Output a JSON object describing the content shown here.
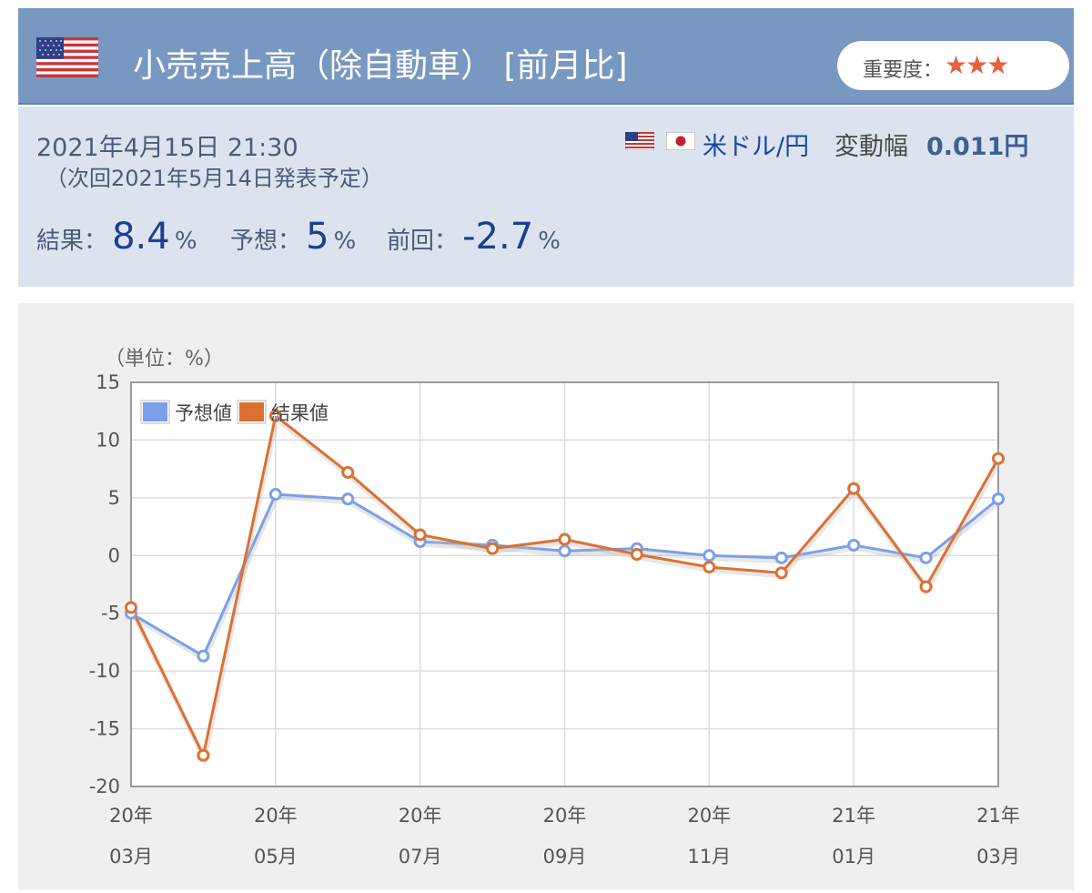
{
  "header": {
    "title": "小売売上高（除自動車） [前月比]",
    "importance_label": "重要度：",
    "importance_stars": "★★★"
  },
  "info": {
    "datetime": "2021年4月15日 21:30",
    "next_release": "（次回2021年5月14日発表予定）",
    "pair": "米ドル/円",
    "change_label": "変動幅",
    "change_value": "0.011円",
    "result_label": "結果：",
    "result_value": "8.4",
    "forecast_label": "予想：",
    "forecast_value": "5",
    "previous_label": "前回：",
    "previous_value": "-2.7",
    "unit": "%"
  },
  "colors": {
    "header_bg": "#7898c1",
    "info_bg": "#dbe4ee",
    "forecast_series": "#7b9fe8",
    "result_series": "#dc7032",
    "stars": "#e8603c"
  },
  "chart_data": {
    "type": "line",
    "unit_label": "（単位：%）",
    "x": [
      "20年03月",
      "20年04月",
      "20年05月",
      "20年06月",
      "20年07月",
      "20年08月",
      "20年09月",
      "20年10月",
      "20年11月",
      "20年12月",
      "21年01月",
      "21年02月",
      "21年03月"
    ],
    "x_ticks": [
      {
        "top": "20年",
        "bottom": "03月"
      },
      {
        "top": "20年",
        "bottom": "05月"
      },
      {
        "top": "20年",
        "bottom": "07月"
      },
      {
        "top": "20年",
        "bottom": "09月"
      },
      {
        "top": "20年",
        "bottom": "11月"
      },
      {
        "top": "21年",
        "bottom": "01月"
      },
      {
        "top": "21年",
        "bottom": "03月"
      }
    ],
    "y_ticks": [
      "15",
      "10",
      "5",
      "0",
      "-5",
      "-10",
      "-15",
      "-20"
    ],
    "ylim": [
      -20,
      15
    ],
    "legend_position": "top-left",
    "grid": true,
    "series": [
      {
        "name": "予想値",
        "color": "#7b9fe8",
        "values": [
          -5.0,
          -8.7,
          5.3,
          4.9,
          1.2,
          0.9,
          0.4,
          0.6,
          0.0,
          -0.2,
          0.9,
          -0.2,
          4.9
        ]
      },
      {
        "name": "結果値",
        "color": "#dc7032",
        "values": [
          -4.5,
          -17.3,
          12.1,
          7.2,
          1.8,
          0.6,
          1.4,
          0.1,
          -1.0,
          -1.5,
          5.8,
          -2.7,
          8.4
        ]
      }
    ]
  }
}
